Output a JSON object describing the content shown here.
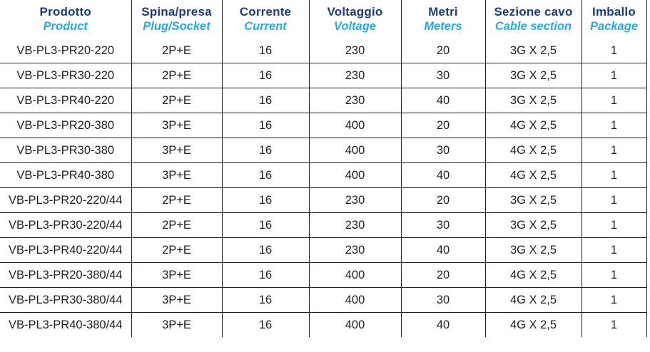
{
  "colors": {
    "header_primary": "#1b3c7d",
    "header_secondary": "#29a8e0",
    "body_text": "#231f20",
    "border": "#231f20",
    "background": "#ffffff"
  },
  "table": {
    "columns": [
      {
        "id": "product",
        "label_it": "Prodotto",
        "label_en": "Product"
      },
      {
        "id": "plug-socket",
        "label_it": "Spina/presa",
        "label_en": "Plug/Socket"
      },
      {
        "id": "current",
        "label_it": "Corrente",
        "label_en": "Current"
      },
      {
        "id": "voltage",
        "label_it": "Voltaggio",
        "label_en": "Voltage"
      },
      {
        "id": "meters",
        "label_it": "Metri",
        "label_en": "Meters"
      },
      {
        "id": "cable-section",
        "label_it": "Sezione cavo",
        "label_en": "Cable section"
      },
      {
        "id": "package",
        "label_it": "Imballo",
        "label_en": "Package"
      }
    ],
    "rows": [
      [
        "VB-PL3-PR20-220",
        "2P+E",
        "16",
        "230",
        "20",
        "3G X 2,5",
        "1"
      ],
      [
        "VB-PL3-PR30-220",
        "2P+E",
        "16",
        "230",
        "30",
        "3G X 2,5",
        "1"
      ],
      [
        "VB-PL3-PR40-220",
        "2P+E",
        "16",
        "230",
        "40",
        "3G X 2,5",
        "1"
      ],
      [
        "VB-PL3-PR20-380",
        "3P+E",
        "16",
        "400",
        "20",
        "4G X 2,5",
        "1"
      ],
      [
        "VB-PL3-PR30-380",
        "3P+E",
        "16",
        "400",
        "30",
        "4G X 2,5",
        "1"
      ],
      [
        "VB-PL3-PR40-380",
        "3P+E",
        "16",
        "400",
        "40",
        "4G X 2,5",
        "1"
      ],
      [
        "VB-PL3-PR20-220/44",
        "2P+E",
        "16",
        "230",
        "20",
        "3G X 2,5",
        "1"
      ],
      [
        "VB-PL3-PR30-220/44",
        "2P+E",
        "16",
        "230",
        "30",
        "3G X 2,5",
        "1"
      ],
      [
        "VB-PL3-PR40-220/44",
        "2P+E",
        "16",
        "230",
        "40",
        "3G X 2,5",
        "1"
      ],
      [
        "VB-PL3-PR20-380/44",
        "3P+E",
        "16",
        "400",
        "20",
        "4G X 2,5",
        "1"
      ],
      [
        "VB-PL3-PR30-380/44",
        "3P+E",
        "16",
        "400",
        "30",
        "4G X 2,5",
        "1"
      ],
      [
        "VB-PL3-PR40-380/44",
        "3P+E",
        "16",
        "400",
        "40",
        "4G X 2,5",
        "1"
      ]
    ]
  }
}
